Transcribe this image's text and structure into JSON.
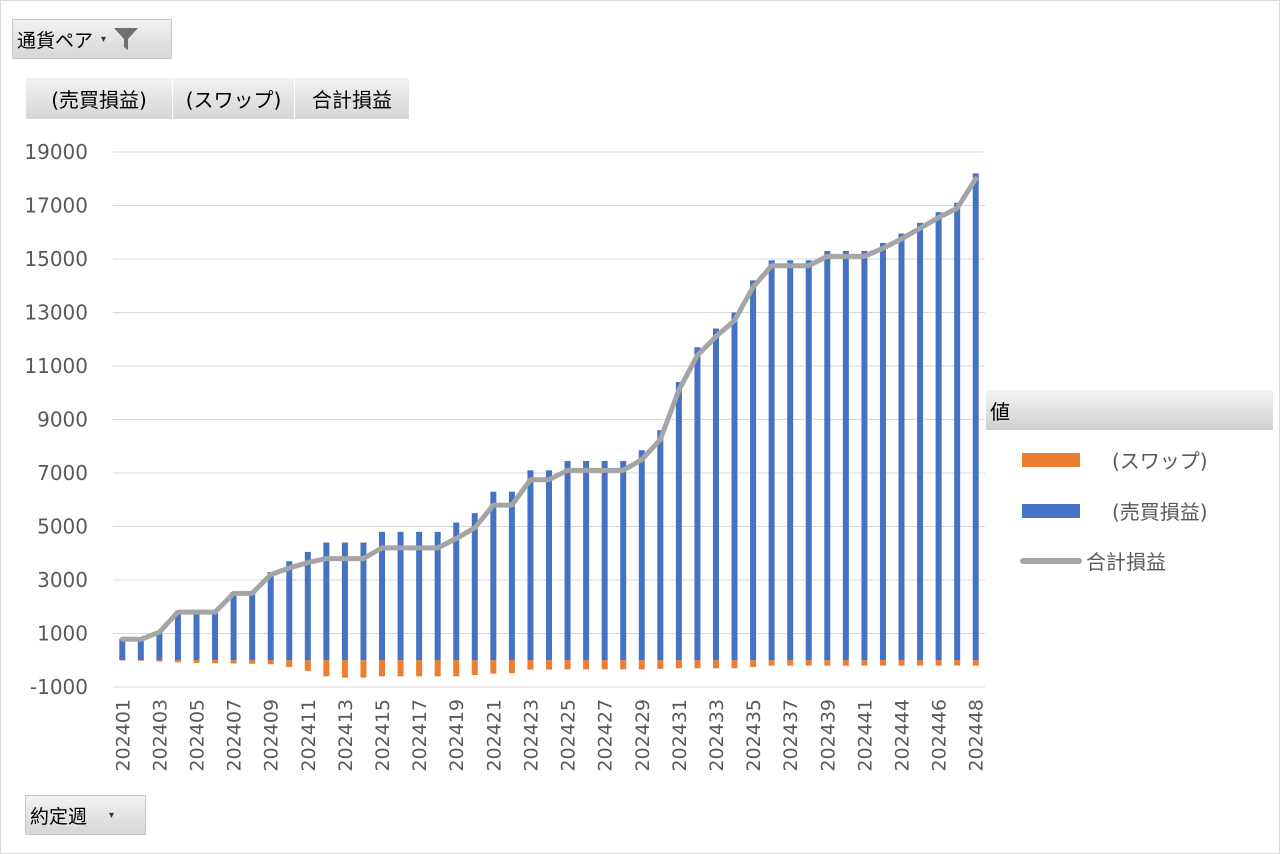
{
  "filter": {
    "label": "通貨ペア",
    "filter_icon": "funnel-icon"
  },
  "fields": [
    "(売買損益)",
    "(スワップ)",
    "合計損益"
  ],
  "legend": {
    "title": "値",
    "items": [
      {
        "label": "(スワップ)",
        "color": "#ed7d31"
      },
      {
        "label": "(売買損益)",
        "color": "#4472c4"
      },
      {
        "label": "合計損益",
        "color": "#a5a5a5"
      }
    ]
  },
  "axis_button": {
    "label": "約定週"
  },
  "chart_data": {
    "type": "bar",
    "stacked": true,
    "ylim": [
      -1000,
      19000
    ],
    "yticks": [
      -1000,
      1000,
      3000,
      5000,
      7000,
      9000,
      11000,
      13000,
      15000,
      17000,
      19000
    ],
    "categories": [
      "202401",
      "202402",
      "202403",
      "202404",
      "202405",
      "202406",
      "202407",
      "202408",
      "202409",
      "202410",
      "202411",
      "202412",
      "202413",
      "202414",
      "202415",
      "202416",
      "202417",
      "202418",
      "202419",
      "202420",
      "202421",
      "202422",
      "202423",
      "202424",
      "202425",
      "202426",
      "202427",
      "202428",
      "202429",
      "202430",
      "202431",
      "202432",
      "202433",
      "202434",
      "202435",
      "202436",
      "202437",
      "202438",
      "202439",
      "202440",
      "202441",
      "202442",
      "202444",
      "202445",
      "202446",
      "202447",
      "202448"
    ],
    "xticks_shown": [
      "202401",
      "202403",
      "202405",
      "202407",
      "202409",
      "202411",
      "202413",
      "202415",
      "202417",
      "202419",
      "202421",
      "202423",
      "202425",
      "202427",
      "202429",
      "202431",
      "202433",
      "202435",
      "202437",
      "202439",
      "202441",
      "202444",
      "202446",
      "202448"
    ],
    "series": [
      {
        "name": "(スワップ)",
        "color": "#ed7d31",
        "values": [
          -10,
          -20,
          -50,
          -80,
          -100,
          -110,
          -120,
          -130,
          -150,
          -250,
          -400,
          -600,
          -650,
          -650,
          -600,
          -600,
          -600,
          -600,
          -600,
          -550,
          -500,
          -480,
          -350,
          -350,
          -340,
          -340,
          -340,
          -340,
          -340,
          -320,
          -300,
          -300,
          -300,
          -300,
          -250,
          -200,
          -200,
          -200,
          -200,
          -200,
          -200,
          -200,
          -200,
          -200,
          -200,
          -200,
          -200
        ]
      },
      {
        "name": "(売買損益)",
        "color": "#4472c4",
        "values": [
          800,
          800,
          1100,
          1850,
          1850,
          1850,
          2550,
          2550,
          3300,
          3700,
          4050,
          4400,
          4400,
          4400,
          4800,
          4800,
          4800,
          4800,
          5150,
          5500,
          6300,
          6300,
          7100,
          7100,
          7450,
          7450,
          7450,
          7450,
          7850,
          8600,
          10400,
          11700,
          12400,
          13000,
          14200,
          14950,
          14950,
          14950,
          15300,
          15300,
          15300,
          15600,
          15950,
          16350,
          16750,
          17100,
          18200
        ]
      },
      {
        "name": "合計損益",
        "color": "#a5a5a5",
        "type": "line",
        "values": [
          790,
          780,
          1050,
          1800,
          1800,
          1800,
          2500,
          2500,
          3200,
          3450,
          3650,
          3800,
          3800,
          3800,
          4200,
          4200,
          4200,
          4200,
          4550,
          4950,
          5800,
          5800,
          6750,
          6750,
          7100,
          7100,
          7100,
          7100,
          7500,
          8250,
          10100,
          11400,
          12100,
          12700,
          13950,
          14750,
          14750,
          14750,
          15100,
          15100,
          15100,
          15400,
          15750,
          16150,
          16550,
          16900,
          18000
        ]
      }
    ]
  }
}
